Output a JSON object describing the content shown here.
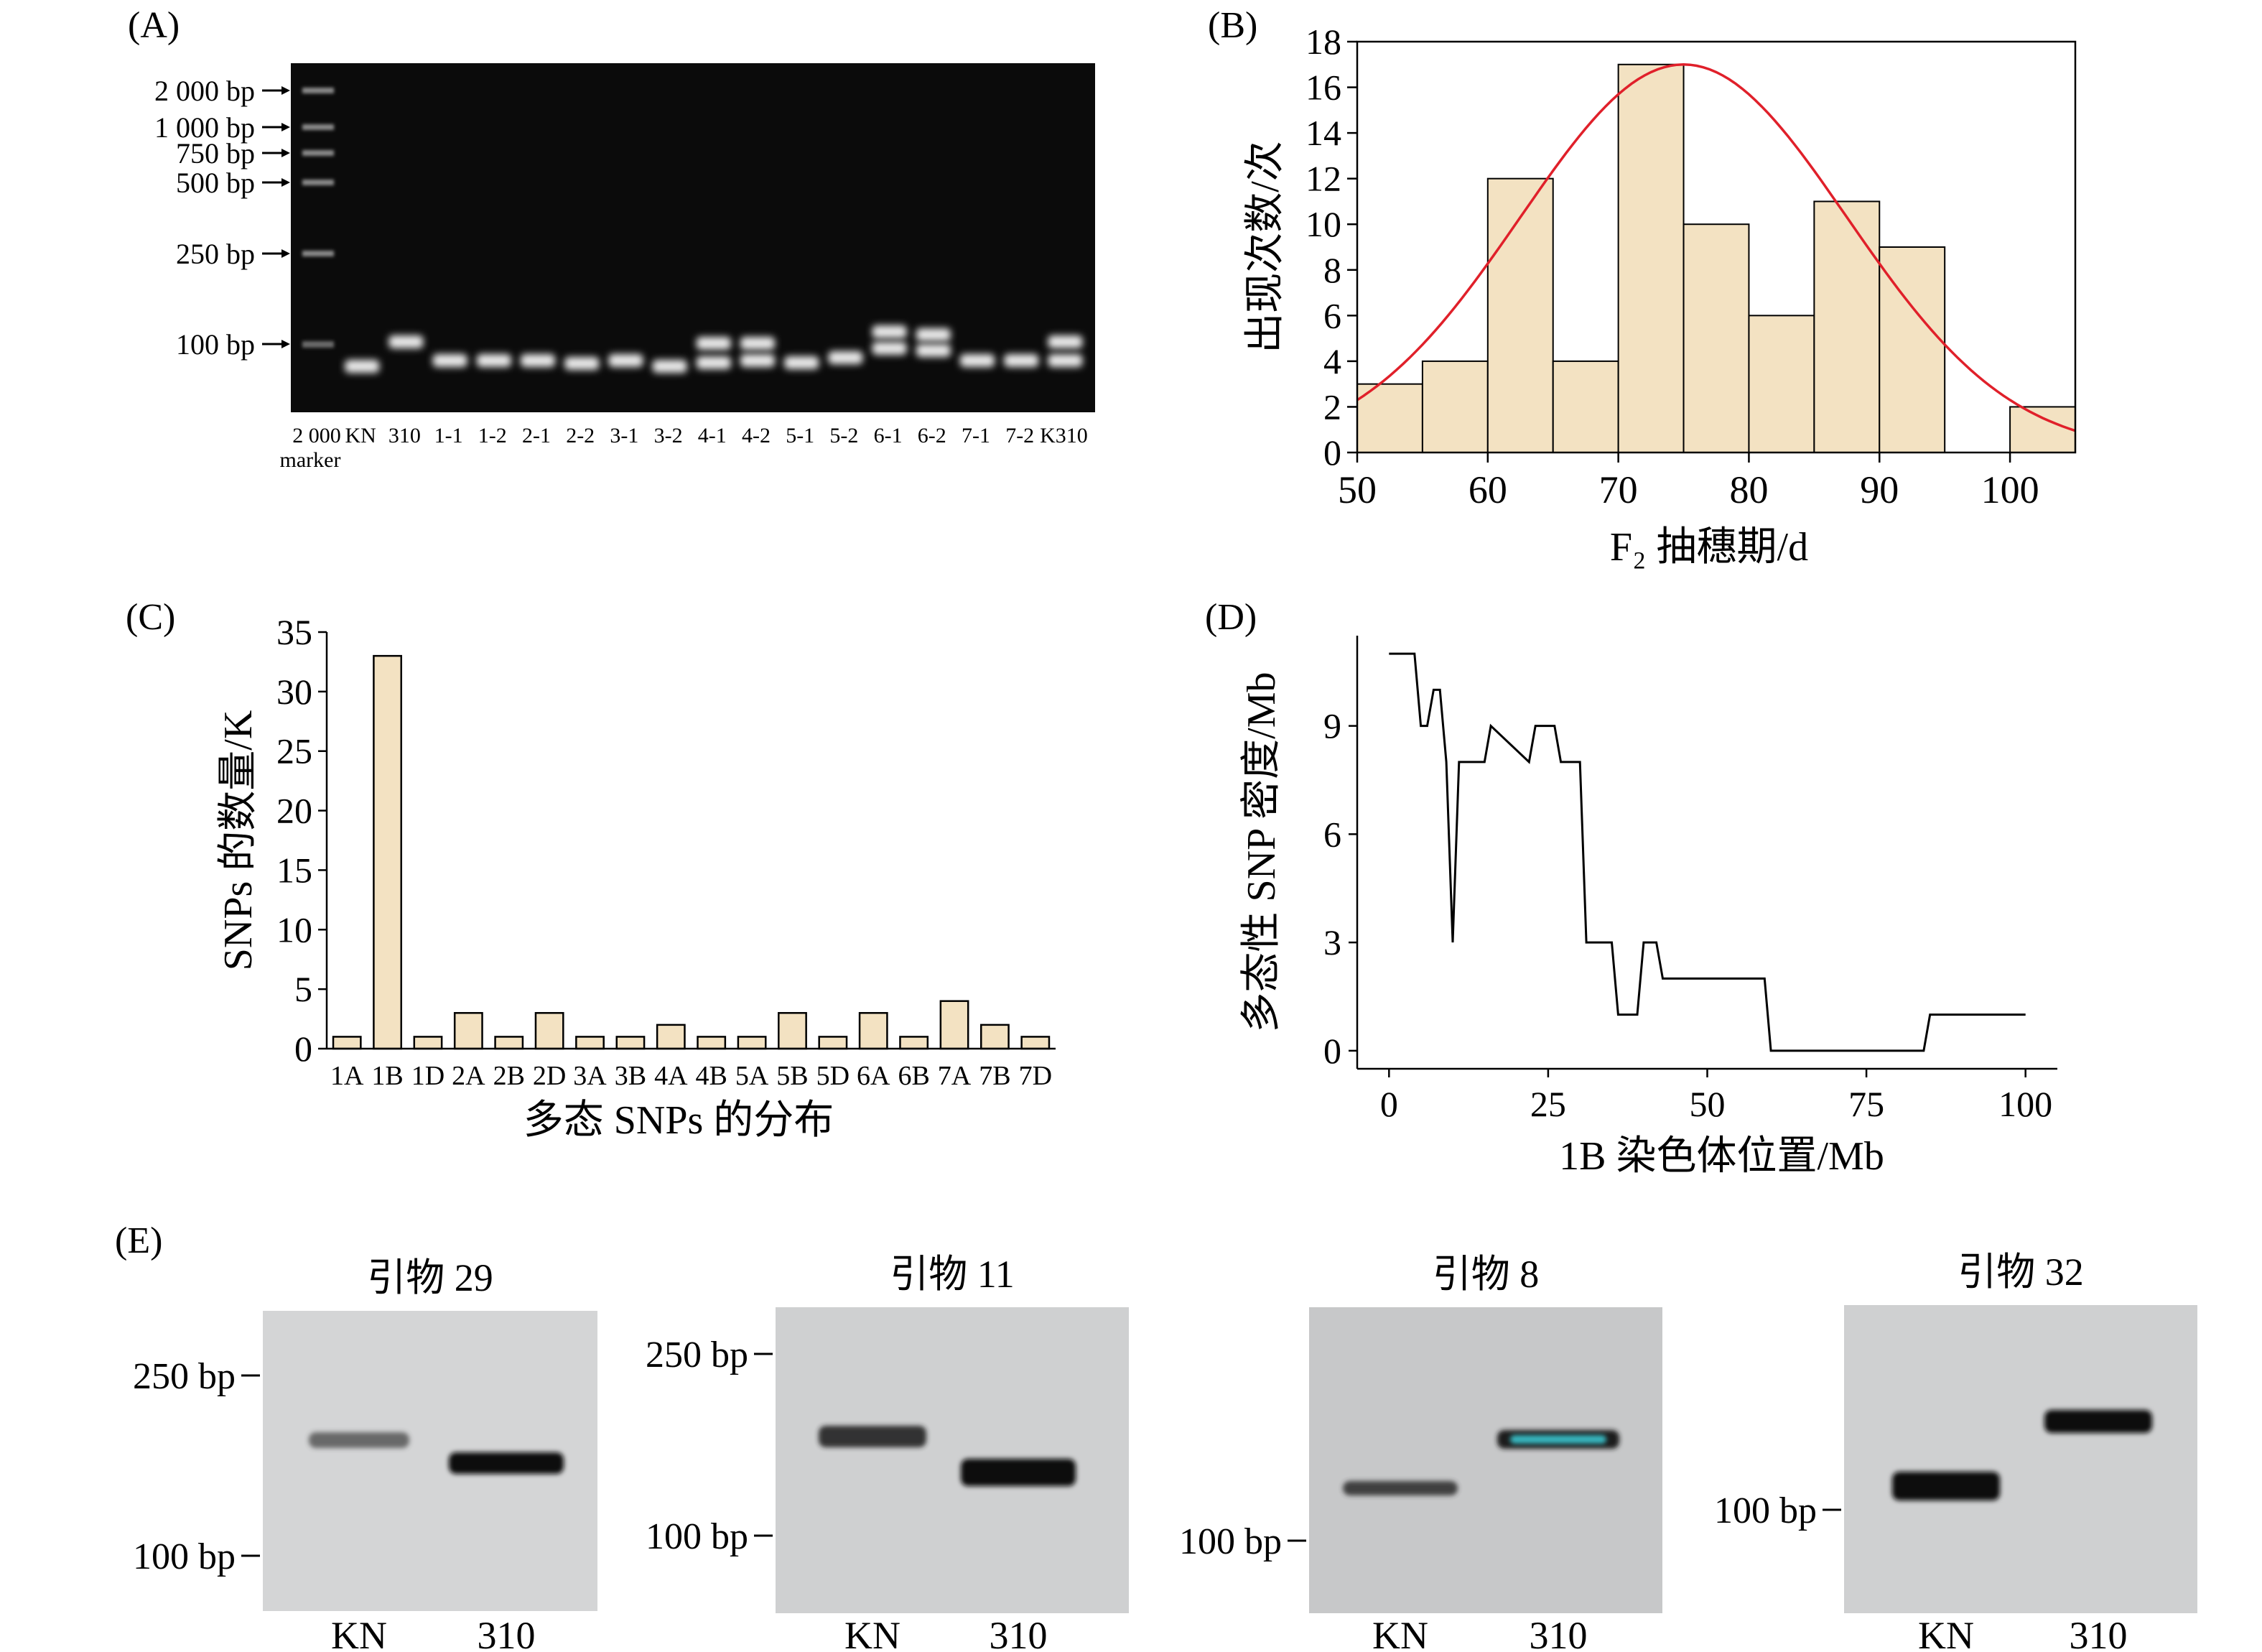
{
  "panelA": {
    "label": "(A)",
    "marker_labels": [
      "2 000 bp",
      "1 000 bp",
      "750 bp",
      "500 bp",
      "250 bp",
      "100 bp"
    ],
    "lanes": [
      "2 000",
      "KN",
      "310",
      "1-1",
      "1-2",
      "2-1",
      "2-2",
      "3-1",
      "3-2",
      "4-1",
      "4-2",
      "5-1",
      "5-2",
      "6-1",
      "6-2",
      "7-1",
      "7-2",
      "K310"
    ],
    "marker_sub": "marker"
  },
  "panelB": {
    "label": "(B)"
  },
  "panelC": {
    "label": "(C)"
  },
  "panelD": {
    "label": "(D)"
  },
  "panelE": {
    "label": "(E)",
    "gels": [
      {
        "title": "引物 29",
        "upper": "250 bp",
        "lower": "100 bp",
        "lane1": "KN",
        "lane2": "310"
      },
      {
        "title": "引物 11",
        "upper": "250 bp",
        "lower": "100 bp",
        "lane1": "KN",
        "lane2": "310"
      },
      {
        "title": "引物 8",
        "upper": "",
        "lower": "100 bp",
        "lane1": "KN",
        "lane2": "310"
      },
      {
        "title": "引物 32",
        "upper": "",
        "lower": "100 bp",
        "lane1": "KN",
        "lane2": "310"
      }
    ]
  },
  "colors": {
    "bar_fill": "#f3e2c2",
    "curve": "#e0202a",
    "gel_dark": "#141414",
    "gel_light": "#d2d4d6",
    "band_cyan": "#38b7c0"
  },
  "chart_data": [
    {
      "id": "B",
      "type": "bar",
      "subtype": "histogram",
      "xlabel": "F₂ 抽穗期/d",
      "ylabel": "出现次数/次",
      "xlim": [
        50,
        105
      ],
      "ylim": [
        0,
        18
      ],
      "xticks": [
        50,
        60,
        70,
        80,
        90,
        100
      ],
      "yticks": [
        0,
        2,
        4,
        6,
        8,
        10,
        12,
        14,
        16,
        18
      ],
      "bins": [
        [
          50,
          55
        ],
        [
          55,
          60
        ],
        [
          60,
          65
        ],
        [
          65,
          70
        ],
        [
          70,
          75
        ],
        [
          75,
          80
        ],
        [
          80,
          85
        ],
        [
          85,
          90
        ],
        [
          90,
          95
        ],
        [
          95,
          100
        ],
        [
          100,
          105
        ]
      ],
      "values": [
        3,
        4,
        12,
        4,
        17,
        10,
        6,
        11,
        9,
        0,
        2
      ],
      "fit_curve": {
        "type": "normal",
        "mean": 75,
        "peak": 17,
        "sd": 12.5
      }
    },
    {
      "id": "C",
      "type": "bar",
      "xlabel": "多态 SNPs 的分布",
      "ylabel": "SNPs 的数量/K",
      "ylim": [
        0,
        35
      ],
      "yticks": [
        0,
        5,
        10,
        15,
        20,
        25,
        30,
        35
      ],
      "categories": [
        "1A",
        "1B",
        "1D",
        "2A",
        "2B",
        "2D",
        "3A",
        "3B",
        "4A",
        "4B",
        "5A",
        "5B",
        "5D",
        "6A",
        "6B",
        "7A",
        "7B",
        "7D"
      ],
      "values": [
        1,
        33,
        1,
        3,
        1,
        3,
        1,
        1,
        2,
        1,
        1,
        3,
        1,
        3,
        1,
        4,
        2,
        1
      ]
    },
    {
      "id": "D",
      "type": "line",
      "xlabel": "1B 染色体位置/Mb",
      "ylabel": "多态性 SNP 密度/Mb",
      "xlim": [
        -5,
        105
      ],
      "ylim": [
        -0.5,
        11.5
      ],
      "xticks": [
        0,
        25,
        50,
        75,
        100
      ],
      "yticks": [
        0,
        3,
        6,
        9
      ],
      "x": [
        0,
        4,
        5,
        6,
        7,
        8,
        9,
        10,
        11,
        12,
        15,
        16,
        22,
        23,
        26,
        27,
        30,
        31,
        35,
        36,
        39,
        40,
        42,
        43,
        59,
        60,
        84,
        85,
        100
      ],
      "y": [
        11,
        11,
        9,
        9,
        10,
        10,
        8,
        3,
        8,
        8,
        8,
        9,
        8,
        9,
        9,
        8,
        8,
        3,
        3,
        1,
        1,
        3,
        3,
        2,
        2,
        0,
        0,
        1,
        1
      ]
    }
  ]
}
